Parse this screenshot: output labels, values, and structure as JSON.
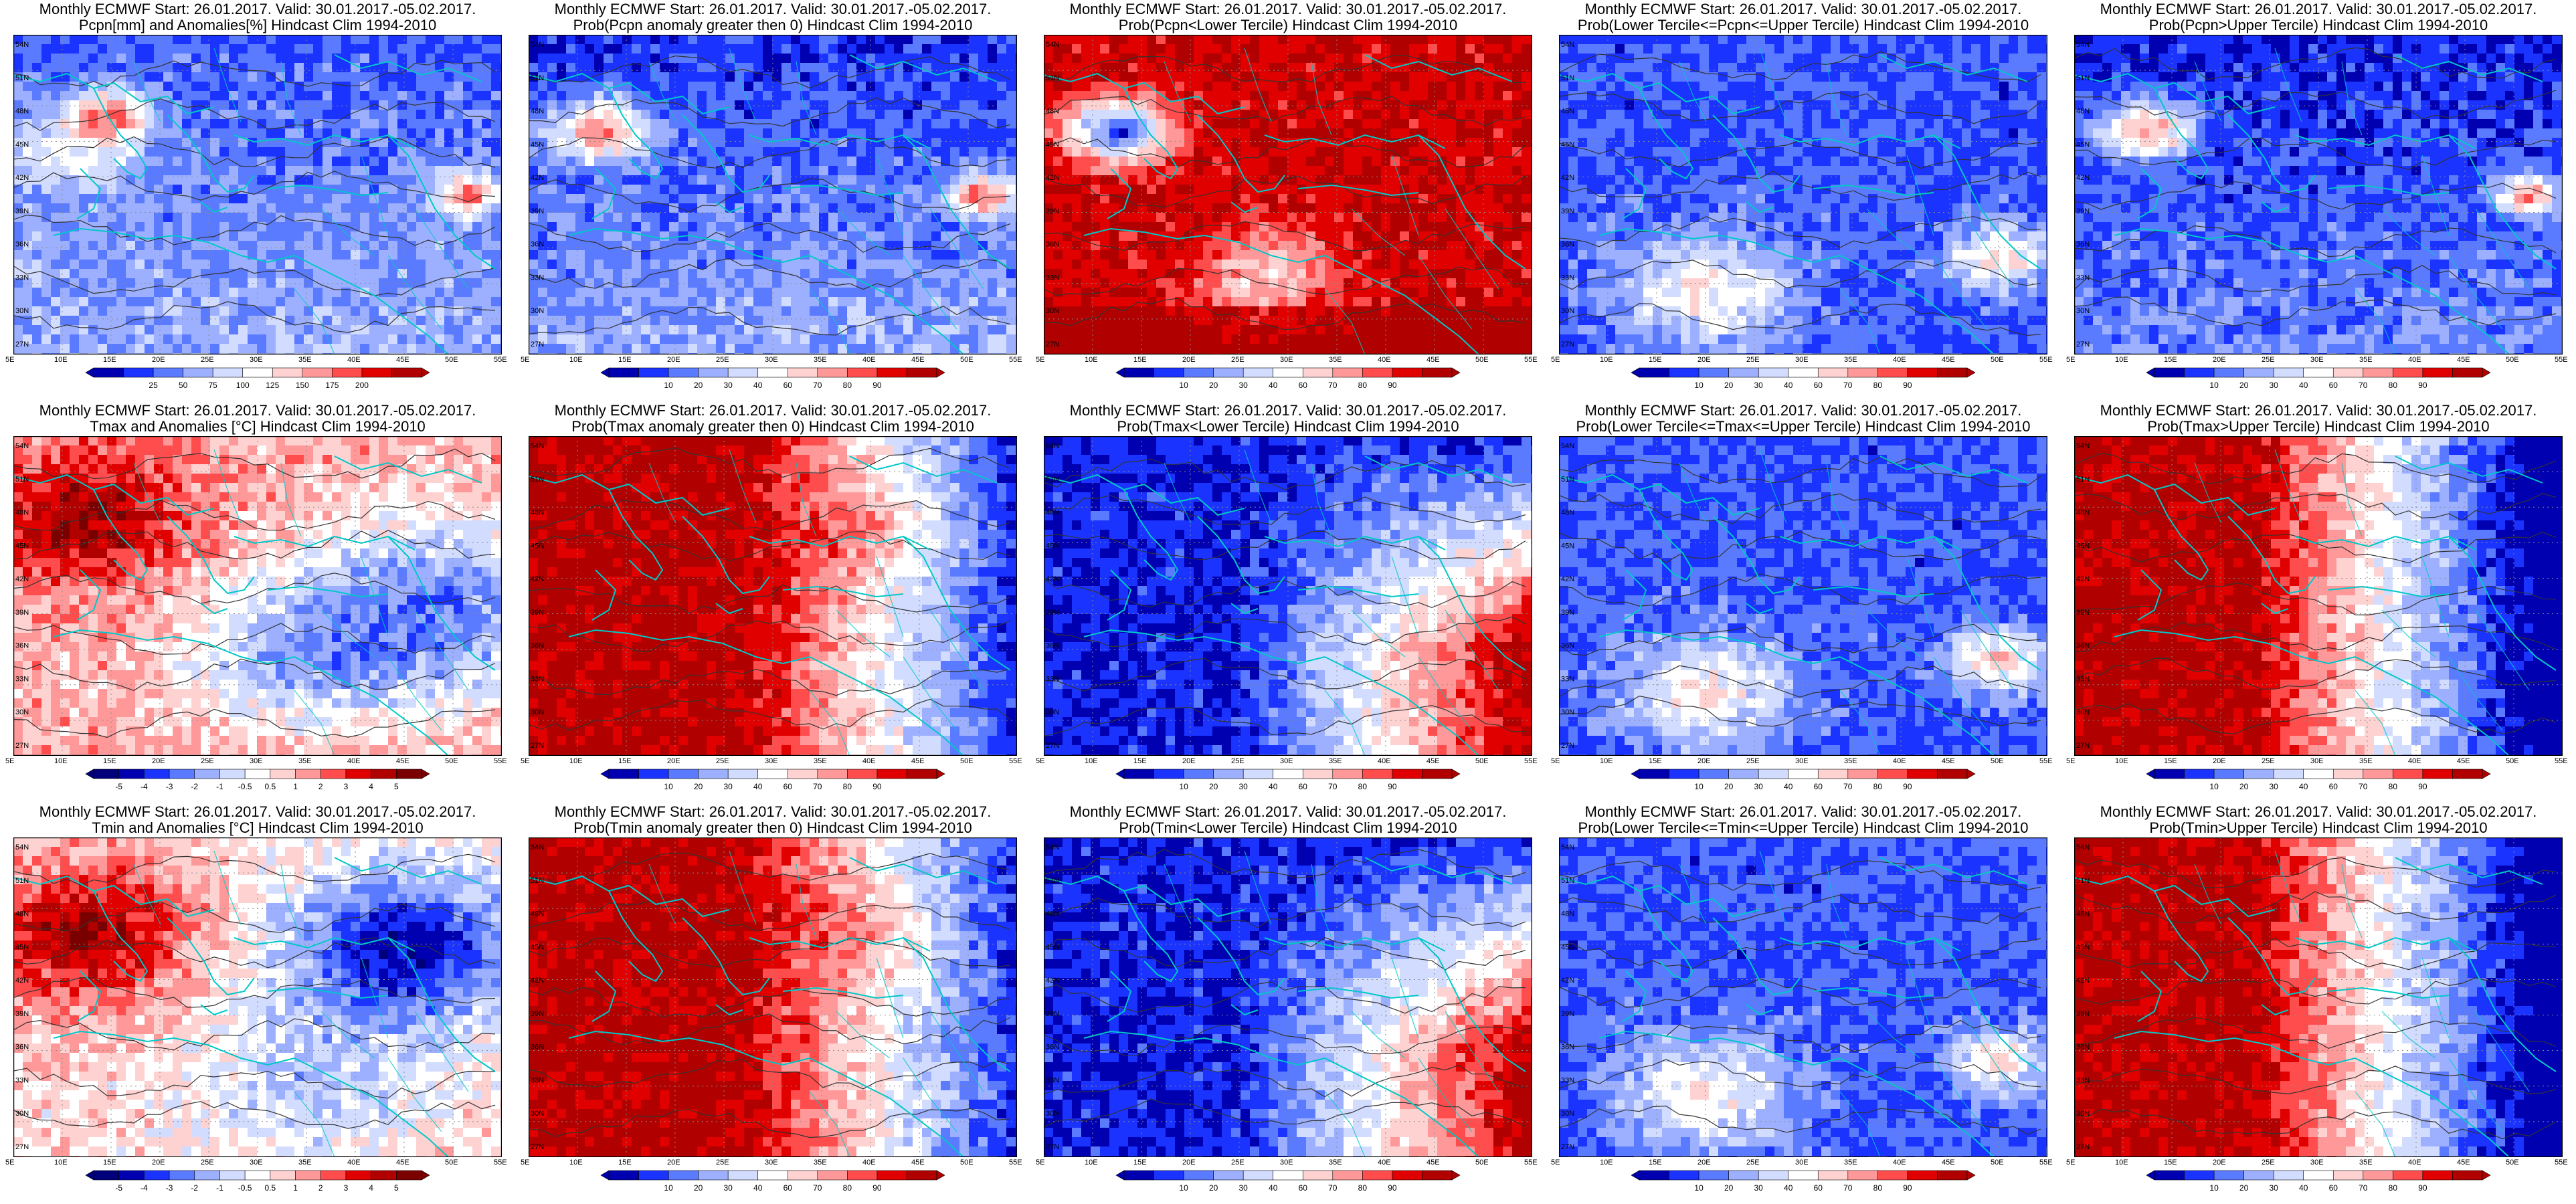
{
  "figure": {
    "rows": [
      {
        "variable": "Pcpn",
        "panels": [
          {
            "title1": "Monthly ECMWF Start: 26.01.2017. Valid: 30.01.2017.-05.02.2017.",
            "title2": "Pcpn[mm] and Anomalies[%] Hindcast Clim 1994-2010",
            "field": "anom_precip",
            "cbar": "pct"
          },
          {
            "title1": "Monthly ECMWF Start: 26.01.2017. Valid: 30.01.2017.-05.02.2017.",
            "title2": "Prob(Pcpn anomaly greater then 0) Hindcast Clim 1994-2010",
            "field": "prob_pos",
            "cbar": "prob"
          },
          {
            "title1": "Monthly ECMWF Start: 26.01.2017. Valid: 30.01.2017.-05.02.2017.",
            "title2": "Prob(Pcpn<Lower Tercile) Hindcast Clim 1994-2010",
            "field": "prob_lower",
            "cbar": "prob"
          },
          {
            "title1": "Monthly ECMWF Start: 26.01.2017. Valid: 30.01.2017.-05.02.2017.",
            "title2": "Prob(Lower Tercile<=Pcpn<=Upper Tercile) Hindcast Clim 1994-2010",
            "field": "prob_middle",
            "cbar": "prob"
          },
          {
            "title1": "Monthly ECMWF Start: 26.01.2017. Valid: 30.01.2017.-05.02.2017.",
            "title2": "Prob(Pcpn>Upper Tercile) Hindcast Clim 1994-2010",
            "field": "prob_upper",
            "cbar": "prob"
          }
        ]
      },
      {
        "variable": "Tmax",
        "panels": [
          {
            "title1": "Monthly ECMWF Start: 26.01.2017. Valid: 30.01.2017.-05.02.2017.",
            "title2": "Tmax and Anomalies [°C] Hindcast Clim 1994-2010",
            "field": "anom_tmax",
            "cbar": "temp"
          },
          {
            "title1": "Monthly ECMWF Start: 26.01.2017. Valid: 30.01.2017.-05.02.2017.",
            "title2": "Prob(Tmax anomaly greater then 0) Hindcast Clim 1994-2010",
            "field": "prob_pos",
            "cbar": "prob"
          },
          {
            "title1": "Monthly ECMWF Start: 26.01.2017. Valid: 30.01.2017.-05.02.2017.",
            "title2": "Prob(Tmax<Lower Tercile) Hindcast Clim 1994-2010",
            "field": "prob_lower",
            "cbar": "prob"
          },
          {
            "title1": "Monthly ECMWF Start: 26.01.2017. Valid: 30.01.2017.-05.02.2017.",
            "title2": "Prob(Lower Tercile<=Tmax<=Upper Tercile) Hindcast Clim 1994-2010",
            "field": "prob_middle",
            "cbar": "prob"
          },
          {
            "title1": "Monthly ECMWF Start: 26.01.2017. Valid: 30.01.2017.-05.02.2017.",
            "title2": "Prob(Tmax>Upper Tercile) Hindcast Clim 1994-2010",
            "field": "prob_upper",
            "cbar": "prob"
          }
        ]
      },
      {
        "variable": "Tmin",
        "panels": [
          {
            "title1": "Monthly ECMWF Start: 26.01.2017. Valid: 30.01.2017.-05.02.2017.",
            "title2": "Tmin and Anomalies [°C] Hindcast Clim 1994-2010",
            "field": "anom_tmin",
            "cbar": "temp"
          },
          {
            "title1": "Monthly ECMWF Start: 26.01.2017. Valid: 30.01.2017.-05.02.2017.",
            "title2": "Prob(Tmin anomaly greater then 0) Hindcast Clim 1994-2010",
            "field": "prob_pos",
            "cbar": "prob"
          },
          {
            "title1": "Monthly ECMWF Start: 26.01.2017. Valid: 30.01.2017.-05.02.2017.",
            "title2": "Prob(Tmin<Lower Tercile) Hindcast Clim 1994-2010",
            "field": "prob_lower",
            "cbar": "prob"
          },
          {
            "title1": "Monthly ECMWF Start: 26.01.2017. Valid: 30.01.2017.-05.02.2017.",
            "title2": "Prob(Lower Tercile<=Tmin<=Upper Tercile) Hindcast Clim 1994-2010",
            "field": "prob_middle",
            "cbar": "prob"
          },
          {
            "title1": "Monthly ECMWF Start: 26.01.2017. Valid: 30.01.2017.-05.02.2017.",
            "title2": "Prob(Tmin>Upper Tercile) Hindcast Clim 1994-2010",
            "field": "prob_upper",
            "cbar": "prob"
          }
        ]
      }
    ],
    "lon_ticks": [
      "5E",
      "10E",
      "15E",
      "20E",
      "25E",
      "30E",
      "35E",
      "40E",
      "45E",
      "50E",
      "55E"
    ],
    "lat_ticks": [
      "54N",
      "51N",
      "48N",
      "45N",
      "42N",
      "39N",
      "36N",
      "33N",
      "30N",
      "27N"
    ],
    "colorbars": {
      "pct": {
        "labels": [
          "25",
          "50",
          "75",
          "100",
          "125",
          "150",
          "175",
          "200"
        ],
        "colors": [
          "#0000b0",
          "#1a33ff",
          "#5a7aff",
          "#9db0ff",
          "#d2dcff",
          "#ffffff",
          "#ffd2d2",
          "#ff9999",
          "#ff4d4d",
          "#e00000",
          "#b00000"
        ]
      },
      "prob": {
        "labels": [
          "10",
          "20",
          "30",
          "40",
          "60",
          "70",
          "80",
          "90"
        ],
        "colors": [
          "#0000b0",
          "#1a33ff",
          "#5a7aff",
          "#9db0ff",
          "#d2dcff",
          "#ffffff",
          "#ffd2d2",
          "#ff9999",
          "#ff4d4d",
          "#e00000",
          "#b00000"
        ]
      },
      "temp": {
        "labels": [
          "-5",
          "-4",
          "-3",
          "-2",
          "-1",
          "-0.5",
          "0.5",
          "1",
          "2",
          "3",
          "4",
          "5"
        ],
        "colors": [
          "#00007a",
          "#0000b0",
          "#1a33ff",
          "#5a7aff",
          "#9db0ff",
          "#d2dcff",
          "#ffffff",
          "#ffd2d2",
          "#ff9999",
          "#ff4d4d",
          "#e00000",
          "#b00000",
          "#7a0000"
        ]
      }
    },
    "colors": {
      "coast": "#00c8c8",
      "contour": "#333333",
      "frame": "#000000",
      "grid": "#8a8a8a"
    }
  }
}
